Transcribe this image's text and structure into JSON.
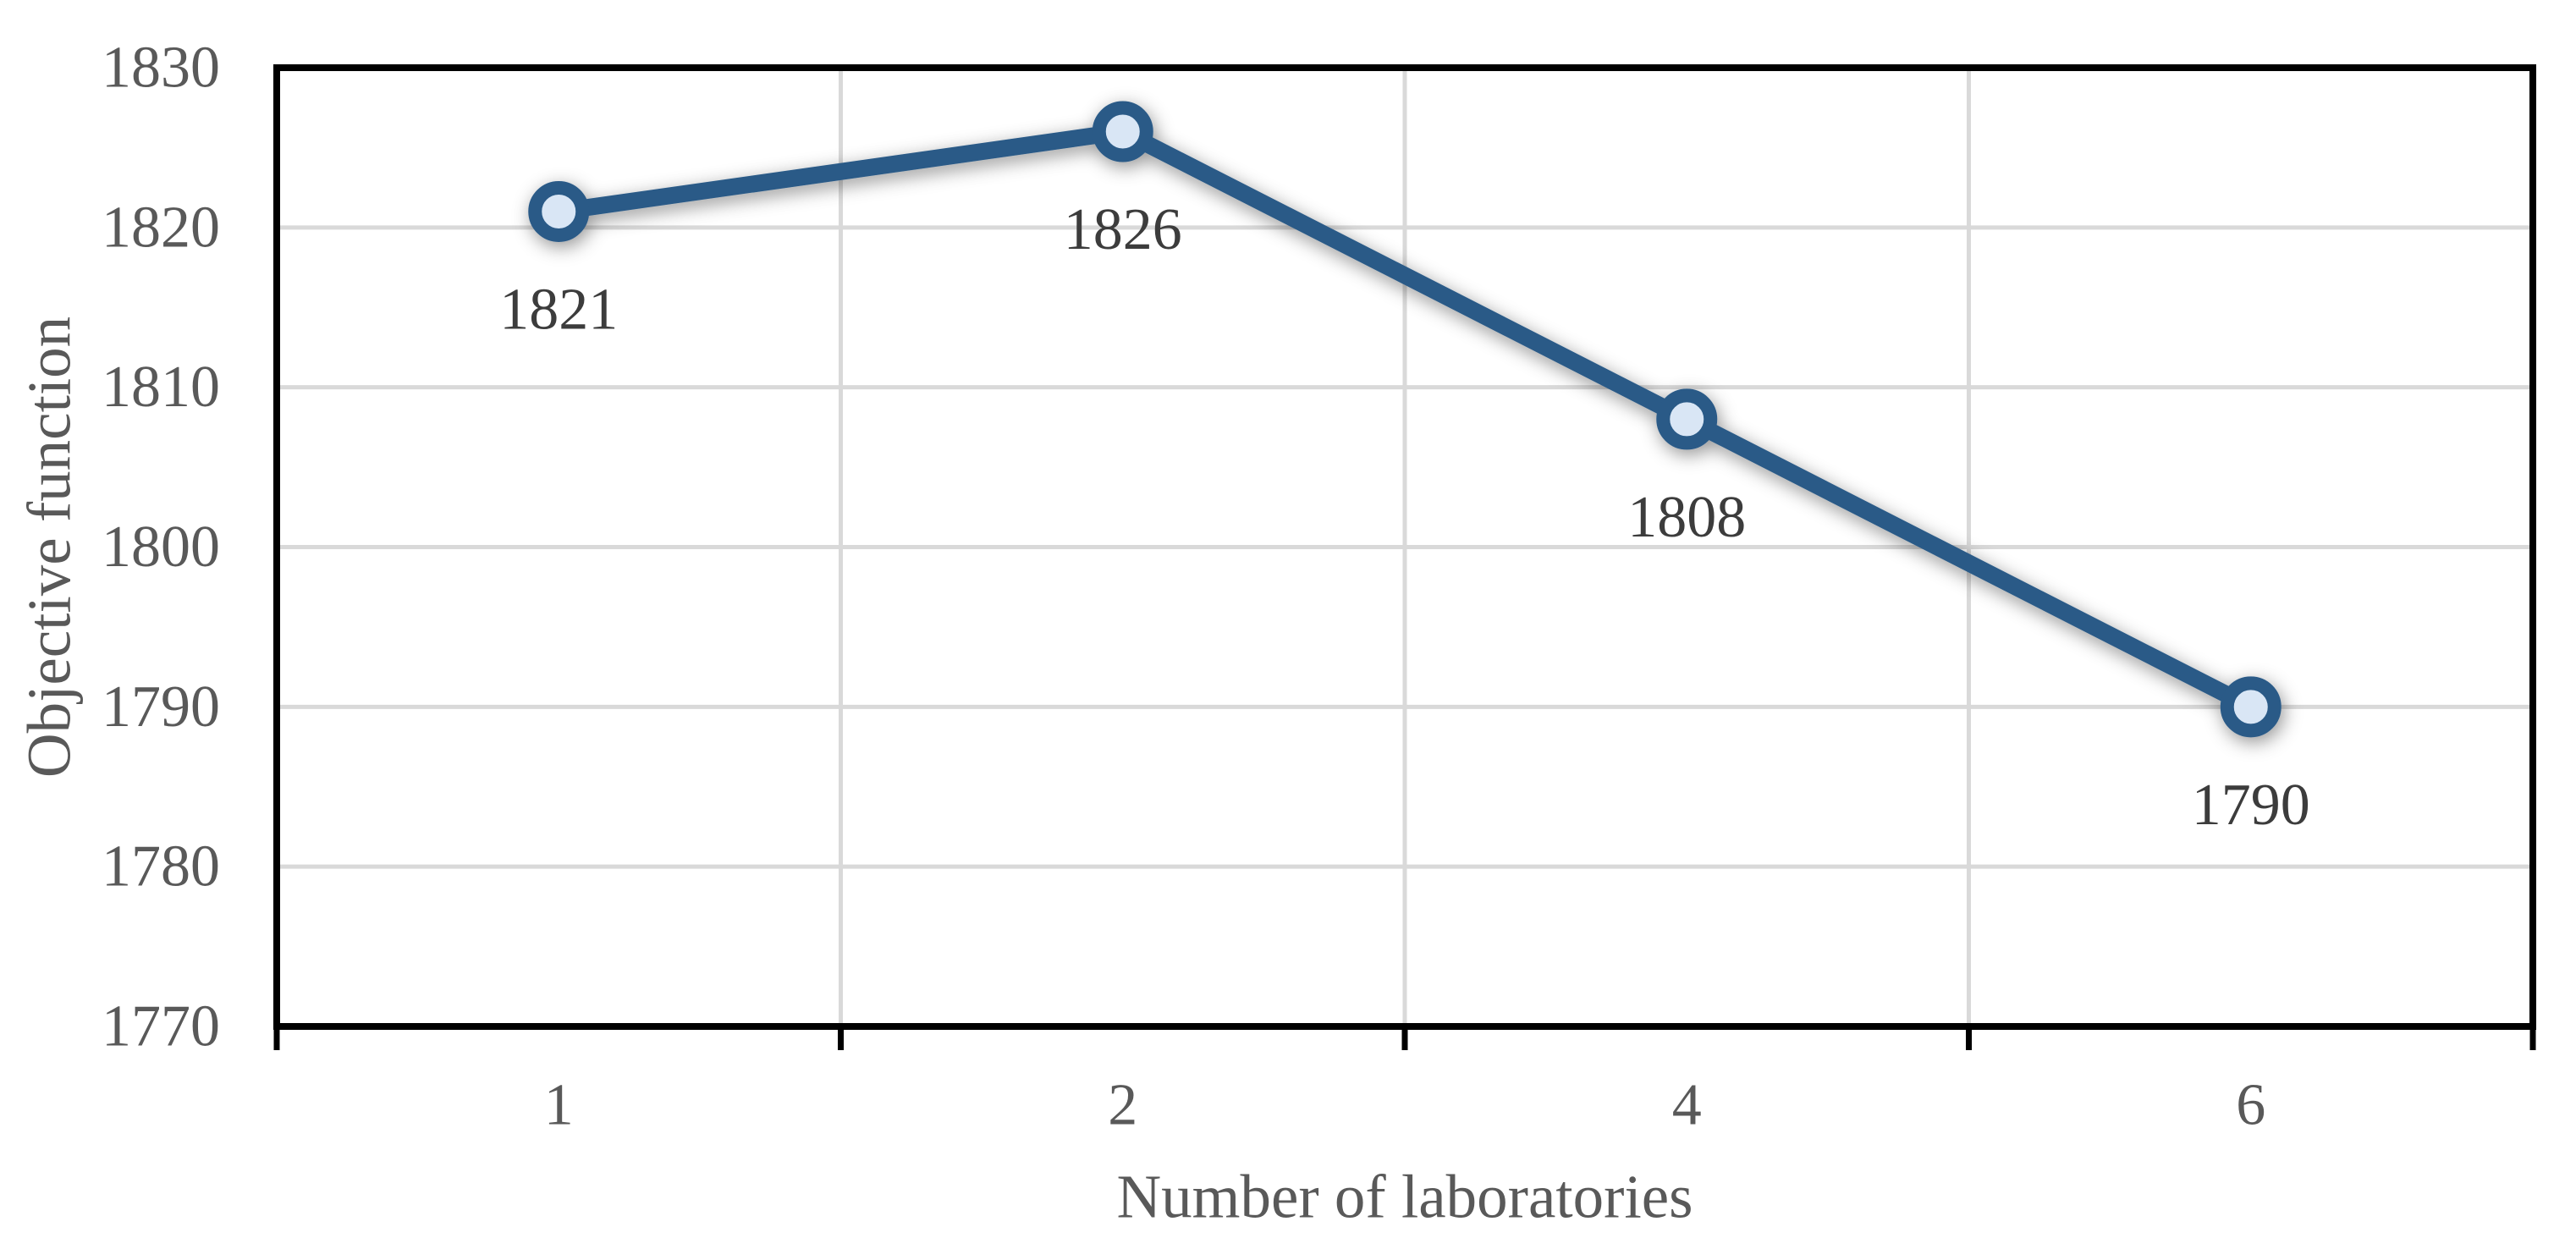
{
  "chart_data": {
    "type": "line",
    "title": "",
    "categories": [
      "1",
      "2",
      "4",
      "6"
    ],
    "series": [
      {
        "name": "Objective function",
        "values": [
          1821,
          1826,
          1808,
          1790
        ]
      }
    ],
    "data_labels": [
      "1821",
      "1826",
      "1808",
      "1790"
    ],
    "xlabel": "Number of laboratories",
    "ylabel": "Objective function",
    "ylim": [
      1770,
      1830
    ],
    "ytick_interval": 10,
    "ytick_labels": [
      "1770",
      "1780",
      "1790",
      "1800",
      "1810",
      "1820",
      "1830"
    ],
    "grid": {
      "horizontal": true,
      "vertical": true
    },
    "legend_position": "none",
    "colors": {
      "line": "#2A5A87",
      "marker_fill": "#D9E6F5",
      "marker_ring": "#2A5A87",
      "gridline": "#D9D9D9",
      "axis_line": "#000000",
      "tick_label": "#595959",
      "axis_title": "#595959",
      "data_label": "#3C3C3C",
      "background": "#FFFFFF"
    }
  }
}
